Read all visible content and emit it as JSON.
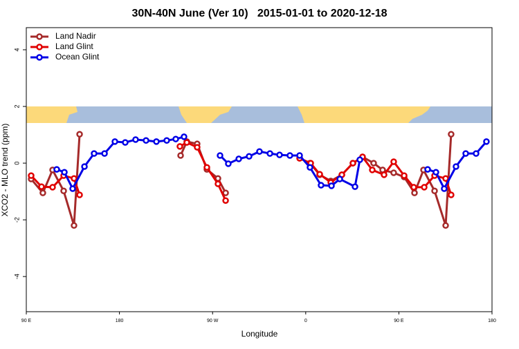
{
  "chart_data": {
    "type": "line",
    "title": "30N-40N June (Ver 10)   2015-01-01 to 2020-12-18",
    "xlabel": "Longitude",
    "ylabel": "XCO2 - MLO trend (ppm)",
    "xlim": [
      90,
      540
    ],
    "ylim": [
      -5.24,
      4.78
    ],
    "xticks": [
      {
        "value": 90,
        "label": "90 E"
      },
      {
        "value": 180,
        "label": "180"
      },
      {
        "value": 270,
        "label": "90 W"
      },
      {
        "value": 360,
        "label": "0"
      },
      {
        "value": 450,
        "label": "90 E"
      },
      {
        "value": 540,
        "label": "180"
      }
    ],
    "yticks": [
      -4,
      -2,
      0,
      2,
      4
    ],
    "legend": "top-left",
    "series": [
      {
        "name": "Land Nadir",
        "color": "#a52a2a",
        "x": [
          94.7,
          106.0,
          115.4,
          126.1,
          136.1,
          141.5,
          null,
          239.1,
          245.1,
          255.1,
          264.5,
          275.2,
          282.6,
          null,
          364.1,
          373.5,
          384.2,
          394.9,
          405.6,
          414.9,
          425.6,
          434.3,
          445.0,
          455.1,
          465.1,
          473.8,
          484.5,
          495.2,
          500.5
        ],
        "values": [
          -0.56,
          -1.05,
          -0.24,
          -0.98,
          -2.2,
          1.02,
          null,
          0.27,
          0.76,
          0.68,
          -0.22,
          -0.54,
          -1.05,
          null,
          0,
          -0.41,
          -0.63,
          -0.41,
          0,
          0.22,
          0,
          -0.24,
          -0.34,
          -0.49,
          -1.05,
          -0.24,
          -0.98,
          -2.2,
          1.02
        ]
      },
      {
        "name": "Land Glint",
        "color": "#e00000",
        "x": [
          94.7,
          104.7,
          115.4,
          126.1,
          136.1,
          141.5,
          null,
          238.4,
          245.1,
          255.1,
          264.5,
          275.2,
          282.6,
          null,
          354.1,
          364.8,
          373.5,
          384.2,
          394.9,
          405.6,
          414.9,
          424.3,
          435.7,
          445.0,
          455.1,
          464.4,
          474.5,
          484.5,
          495.2,
          500.5
        ],
        "values": [
          -0.44,
          -0.83,
          -0.85,
          -0.44,
          -0.54,
          -1.12,
          null,
          0.59,
          0.73,
          0.56,
          -0.15,
          -0.73,
          -1.32,
          null,
          0.17,
          0,
          -0.39,
          -0.68,
          -0.41,
          0,
          0.22,
          -0.24,
          -0.41,
          0.05,
          -0.44,
          -0.85,
          -0.85,
          -0.44,
          -0.54,
          -1.12
        ]
      },
      {
        "name": "Ocean Glint",
        "color": "#0000e6",
        "x": [
          119.4,
          126.8,
          134.8,
          146.2,
          155.5,
          165.6,
          175.6,
          185.6,
          195.6,
          205.7,
          215.7,
          225.7,
          234.4,
          242.4,
          null,
          277.2,
          285.2,
          295.3,
          305.3,
          315.3,
          325.4,
          334.7,
          344.7,
          354.1,
          364.1,
          374.8,
          384.9,
          392.9,
          407.6,
          412.3,
          null,
          477.8,
          485.8,
          493.8,
          505.2,
          514.6,
          524.6,
          534.6
        ],
        "values": [
          -0.22,
          -0.32,
          -0.9,
          -0.12,
          0.34,
          0.34,
          0.76,
          0.73,
          0.83,
          0.8,
          0.76,
          0.8,
          0.85,
          0.93,
          null,
          0.27,
          -0.02,
          0.15,
          0.24,
          0.41,
          0.34,
          0.29,
          0.27,
          0.27,
          -0.15,
          -0.78,
          -0.8,
          -0.56,
          -0.83,
          0.12,
          null,
          -0.22,
          -0.32,
          -0.9,
          -0.12,
          0.34,
          0.34,
          0.76
        ]
      }
    ]
  }
}
